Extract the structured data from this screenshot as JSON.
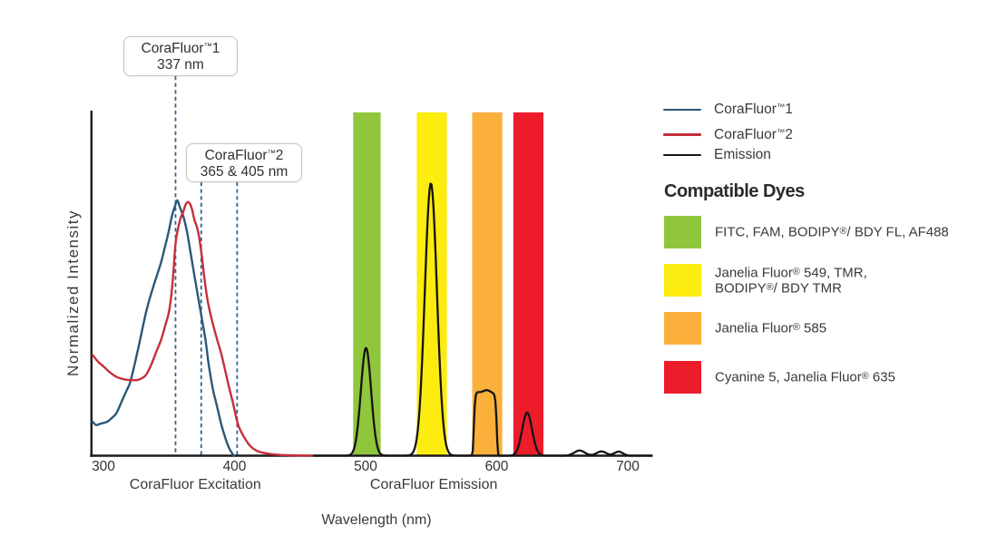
{
  "chart_data": {
    "type": "line",
    "title": "",
    "xlabel": "Wavelength (nm)",
    "ylabel": "Normalized Intensity",
    "x_ticks": [
      300,
      400,
      500,
      600,
      700
    ],
    "x_axis_range_nm": [
      290.3,
      719
    ],
    "ylim": [
      0,
      1
    ],
    "grid": false,
    "axis_color": "#1c1c1c",
    "section_labels": [
      {
        "label": "CoraFluor Excitation",
        "center_nm": 370.1
      },
      {
        "label": "CoraFluor Emission",
        "center_nm": 552.0
      }
    ],
    "annotations": [
      {
        "title": "CoraFluor™1",
        "value": "337 nm",
        "marker_nm": [
          355.0
        ]
      },
      {
        "title": "CoraFluor™2",
        "value": "365 & 405 nm",
        "marker_nm": [
          374.6,
          402.0
        ]
      }
    ],
    "marker_style": {
      "color": "#2e6694",
      "dash": [
        4.2,
        3.4
      ],
      "width": 1.8
    },
    "bands": [
      {
        "name": "green-band",
        "color": "#90c63c",
        "nm": [
          490.5,
          511.5
        ]
      },
      {
        "name": "yellow-band",
        "color": "#fcec0f",
        "nm": [
          539.0,
          562.0
        ]
      },
      {
        "name": "orange-band",
        "color": "#fbb03b",
        "nm": [
          581.3,
          604.2
        ]
      },
      {
        "name": "red-band",
        "color": "#ec1c2b",
        "nm": [
          612.7,
          635.6
        ]
      }
    ],
    "band_top_intensity": 0.995,
    "series": [
      {
        "name": "CoraFluor™1",
        "kind": "spline",
        "color": "#2b5878",
        "width": 2.4,
        "points": [
          [
            291.7,
            0.099
          ],
          [
            294.4,
            0.089
          ],
          [
            298.0,
            0.093
          ],
          [
            302.8,
            0.0983
          ],
          [
            306.0,
            0.108
          ],
          [
            310.0,
            0.124
          ],
          [
            314.7,
            0.164
          ],
          [
            317.8,
            0.19
          ],
          [
            320.8,
            0.218
          ],
          [
            326.5,
            0.31
          ],
          [
            332.6,
            0.417
          ],
          [
            337.9,
            0.488
          ],
          [
            343.8,
            0.558
          ],
          [
            346.6,
            0.6
          ],
          [
            349.5,
            0.645
          ],
          [
            352.3,
            0.695
          ],
          [
            354.5,
            0.722
          ],
          [
            356.3,
            0.74
          ],
          [
            358.5,
            0.718
          ],
          [
            361.0,
            0.693
          ],
          [
            363.7,
            0.65
          ],
          [
            366.6,
            0.586
          ],
          [
            369.4,
            0.522
          ],
          [
            372.3,
            0.458
          ],
          [
            375.2,
            0.395
          ],
          [
            378.0,
            0.332
          ],
          [
            380.3,
            0.264
          ],
          [
            383.6,
            0.191
          ],
          [
            385.7,
            0.158
          ],
          [
            387.7,
            0.126
          ],
          [
            389.7,
            0.094
          ],
          [
            392.1,
            0.062
          ],
          [
            395.0,
            0.03
          ],
          [
            397.3,
            0.012
          ],
          [
            399.6,
            0.0
          ]
        ]
      },
      {
        "name": "CoraFluor™2",
        "kind": "spline",
        "color": "#c62f3a",
        "width": 2.4,
        "points": [
          [
            291.7,
            0.292
          ],
          [
            296.0,
            0.272
          ],
          [
            300.0,
            0.259
          ],
          [
            304.8,
            0.242
          ],
          [
            309.7,
            0.229
          ],
          [
            314.0,
            0.223
          ],
          [
            318.0,
            0.22
          ],
          [
            322.0,
            0.219
          ],
          [
            326.0,
            0.2195
          ],
          [
            330.0,
            0.226
          ],
          [
            333.0,
            0.237
          ],
          [
            336.5,
            0.264
          ],
          [
            340.2,
            0.3
          ],
          [
            343.9,
            0.335
          ],
          [
            347.0,
            0.375
          ],
          [
            350.4,
            0.425
          ],
          [
            352.9,
            0.508
          ],
          [
            354.9,
            0.611
          ],
          [
            357.0,
            0.66
          ],
          [
            359.0,
            0.69
          ],
          [
            360.7,
            0.705
          ],
          [
            363.0,
            0.73
          ],
          [
            365.3,
            0.734
          ],
          [
            367.5,
            0.715
          ],
          [
            369.3,
            0.685
          ],
          [
            372.2,
            0.65
          ],
          [
            374.8,
            0.586
          ],
          [
            376.8,
            0.522
          ],
          [
            379.2,
            0.456
          ],
          [
            381.7,
            0.41
          ],
          [
            384.0,
            0.3745
          ],
          [
            387.0,
            0.333
          ],
          [
            389.8,
            0.297
          ],
          [
            393.0,
            0.245
          ],
          [
            396.0,
            0.196
          ],
          [
            399.0,
            0.15
          ],
          [
            402.4,
            0.094
          ],
          [
            406.1,
            0.062
          ],
          [
            411.6,
            0.03
          ],
          [
            417.5,
            0.0134
          ],
          [
            424.3,
            0.0068
          ],
          [
            432.0,
            0.003
          ],
          [
            442.0,
            0.0012
          ],
          [
            452.0,
            0.0005
          ],
          [
            459.0,
            0.0
          ]
        ]
      },
      {
        "name": "Emission",
        "kind": "peaks",
        "color": "#141414",
        "width": 2.3,
        "domain": [
          461,
          718.5
        ],
        "peaks": [
          {
            "c": 500.3,
            "h": 0.313,
            "s": 3.9
          },
          {
            "c": 549.8,
            "h": 0.79,
            "s": 4.6
          },
          {
            "c": 591.3,
            "h": 0.179,
            "w": 8.9,
            "p": 14,
            "flat": true
          },
          {
            "c": 592.3,
            "h": 0.011,
            "s": 3.0
          },
          {
            "c": 584.8,
            "h": 0.005,
            "s": 2.2
          },
          {
            "c": 623.2,
            "h": 0.125,
            "s": 3.8
          },
          {
            "c": 663.2,
            "h": 0.015,
            "s": 4.0
          },
          {
            "c": 679.9,
            "h": 0.0125,
            "s": 3.6
          },
          {
            "c": 693.0,
            "h": 0.0118,
            "s": 3.2
          }
        ]
      }
    ]
  },
  "legend": {
    "items": [
      {
        "label": "CoraFluor™1",
        "color": "#2b5878"
      },
      {
        "label": "CoraFluor™2",
        "color": "#c62f3a"
      },
      {
        "label": "Emission",
        "color": "#141414"
      }
    ]
  },
  "dyes": {
    "heading": "Compatible Dyes",
    "items": [
      {
        "color": "#90c63c",
        "lines": [
          "FITC, FAM, BODIPY®/ BDY FL, AF488",
          ""
        ]
      },
      {
        "color": "#fcec0f",
        "lines": [
          "Janelia Fluor® 549, TMR,",
          "BODIPY®/ BDY TMR"
        ]
      },
      {
        "color": "#fbb03b",
        "lines": [
          "Janelia Fluor® 585",
          ""
        ]
      },
      {
        "color": "#ec1c2b",
        "lines": [
          "Cyanine 5, Janelia Fluor® 635",
          ""
        ]
      }
    ]
  }
}
